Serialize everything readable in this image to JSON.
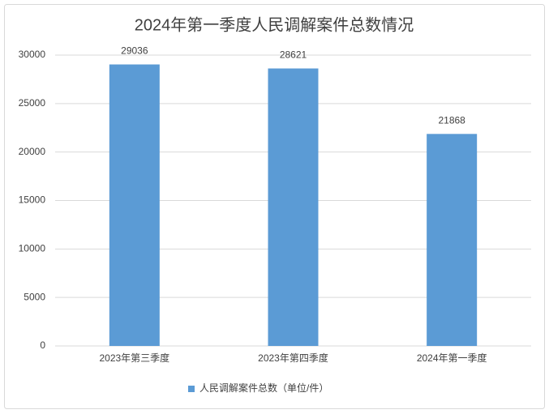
{
  "chart_data": {
    "type": "bar",
    "title": "2024年第一季度人民调解案件总数情况",
    "categories": [
      "2023年第三季度",
      "2023年第四季度",
      "2024年第一季度"
    ],
    "series": [
      {
        "name": "人民调解案件总数（单位/件）",
        "color": "#5b9bd5",
        "values": [
          29036,
          28621,
          21868
        ]
      }
    ],
    "ylim": [
      0,
      30000
    ],
    "yticks": [
      0,
      5000,
      10000,
      15000,
      20000,
      25000,
      30000
    ],
    "grid": true,
    "legend": "bottom",
    "data_labels": true
  }
}
